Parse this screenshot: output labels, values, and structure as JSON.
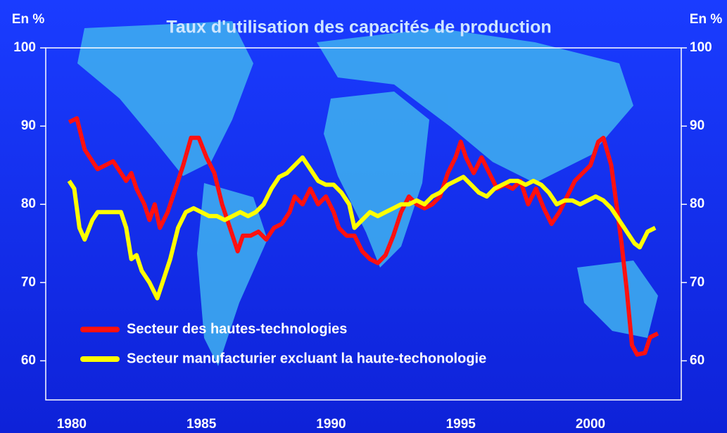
{
  "chart_data": {
    "type": "line",
    "title": "Taux d'utilisation des capacités de production",
    "y_label": "En %",
    "y2_label": "En %",
    "xlim": [
      1979,
      2003.5
    ],
    "xticks": [
      1980,
      1985,
      1990,
      1995,
      2000
    ],
    "ylim": [
      55,
      100
    ],
    "yticks": [
      60,
      70,
      80,
      90,
      100
    ],
    "y2lim": [
      55,
      100
    ],
    "y2ticks": [
      60,
      70,
      80,
      90,
      100
    ],
    "legend": "lower left",
    "series": [
      {
        "name": "Secteur des hautes-technologies",
        "color": "#ff1010",
        "x": [
          1979.9,
          1980.2,
          1980.5,
          1980.8,
          1981.0,
          1981.3,
          1981.6,
          1981.9,
          1982.1,
          1982.3,
          1982.5,
          1982.8,
          1983.0,
          1983.2,
          1983.4,
          1983.7,
          1984.0,
          1984.3,
          1984.6,
          1984.9,
          1985.2,
          1985.5,
          1985.8,
          1986.0,
          1986.2,
          1986.4,
          1986.6,
          1986.9,
          1987.2,
          1987.5,
          1987.8,
          1988.1,
          1988.4,
          1988.6,
          1988.9,
          1989.2,
          1989.5,
          1989.8,
          1990.1,
          1990.3,
          1990.6,
          1990.9,
          1991.2,
          1991.5,
          1991.8,
          1992.1,
          1992.4,
          1992.7,
          1993.0,
          1993.3,
          1993.6,
          1993.9,
          1994.2,
          1994.5,
          1994.8,
          1995.0,
          1995.2,
          1995.5,
          1995.8,
          1996.1,
          1996.4,
          1996.7,
          1997.0,
          1997.3,
          1997.6,
          1997.9,
          1998.2,
          1998.5,
          1998.8,
          1999.1,
          1999.4,
          1999.7,
          2000.0,
          2000.3,
          2000.5,
          2000.8,
          2001.0,
          2001.2,
          2001.4,
          2001.6,
          2001.8,
          2002.1,
          2002.3,
          2002.6
        ],
        "values": [
          90.5,
          91,
          87,
          85.5,
          84.5,
          85,
          85.5,
          84,
          83,
          84,
          82,
          80,
          78,
          80,
          77,
          79,
          82,
          85,
          88.5,
          88.5,
          86,
          84,
          80,
          78,
          76,
          74,
          76,
          76,
          76.5,
          75.5,
          77,
          77.5,
          79,
          81,
          80,
          82,
          80,
          81,
          79,
          77,
          76,
          76,
          74,
          73,
          72.5,
          73.5,
          76,
          79,
          81,
          80,
          79.5,
          80,
          81,
          84,
          86,
          88,
          86,
          84,
          86,
          84,
          82,
          82.5,
          82,
          83,
          80,
          82,
          79.5,
          77.5,
          79,
          81,
          83,
          84,
          85,
          88,
          88.5,
          85,
          80,
          75,
          69,
          62,
          60.8,
          61,
          63,
          63.5
        ]
      },
      {
        "name": "Secteur manufacturier excluant la haute-techonologie",
        "color": "#ffff00",
        "x": [
          1979.9,
          1980.1,
          1980.3,
          1980.5,
          1980.8,
          1981.0,
          1981.3,
          1981.6,
          1981.9,
          1982.1,
          1982.3,
          1982.5,
          1982.7,
          1983.0,
          1983.3,
          1983.5,
          1983.8,
          1984.1,
          1984.4,
          1984.7,
          1985.0,
          1985.3,
          1985.6,
          1985.9,
          1986.2,
          1986.5,
          1986.8,
          1987.1,
          1987.4,
          1987.7,
          1988.0,
          1988.3,
          1988.6,
          1988.9,
          1989.2,
          1989.5,
          1989.8,
          1990.1,
          1990.4,
          1990.7,
          1990.9,
          1991.2,
          1991.5,
          1991.8,
          1992.1,
          1992.4,
          1992.7,
          1993.0,
          1993.3,
          1993.6,
          1993.9,
          1994.2,
          1994.5,
          1994.8,
          1995.1,
          1995.4,
          1995.7,
          1996.0,
          1996.3,
          1996.6,
          1996.9,
          1997.2,
          1997.5,
          1997.8,
          1998.1,
          1998.4,
          1998.7,
          1999.0,
          1999.3,
          1999.6,
          1999.9,
          2000.2,
          2000.5,
          2000.8,
          2001.1,
          2001.4,
          2001.7,
          2001.9,
          2002.2,
          2002.5
        ],
        "values": [
          83,
          82,
          77,
          75.5,
          78,
          79,
          79,
          79,
          79,
          77,
          73,
          73.5,
          71.5,
          70,
          68,
          70,
          73,
          77,
          79,
          79.5,
          79,
          78.5,
          78.5,
          78,
          78.5,
          79,
          78.5,
          79,
          80,
          82,
          83.5,
          84,
          85,
          86,
          84.5,
          83,
          82.5,
          82.5,
          81.5,
          80,
          77,
          78,
          79,
          78.5,
          79,
          79.5,
          80,
          80,
          80.5,
          80,
          81,
          81.5,
          82.5,
          83,
          83.5,
          82.5,
          81.5,
          81,
          82,
          82.5,
          83,
          83,
          82.5,
          83,
          82.5,
          81.5,
          80,
          80.5,
          80.5,
          80,
          80.5,
          81,
          80.5,
          79.5,
          78,
          76.5,
          75,
          74.5,
          76.5,
          77
        ]
      }
    ]
  }
}
